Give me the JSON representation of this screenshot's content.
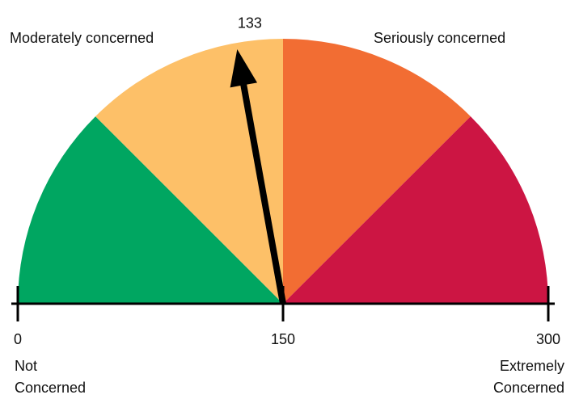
{
  "chart_data": {
    "type": "gauge",
    "value": 133,
    "xlim": [
      0,
      300
    ],
    "xticks": [
      0,
      150,
      300
    ],
    "needle_color": "#000000",
    "segments": [
      {
        "from": 0,
        "to": 75,
        "color": "#00a661",
        "label": "Not Concerned"
      },
      {
        "from": 75,
        "to": 150,
        "color": "#fdc068",
        "label": "Moderately concerned"
      },
      {
        "from": 150,
        "to": 225,
        "color": "#f26d33",
        "label": "Seriously concerned"
      },
      {
        "from": 225,
        "to": 300,
        "color": "#cc1543",
        "label": "Extremely Concerned"
      }
    ]
  }
}
